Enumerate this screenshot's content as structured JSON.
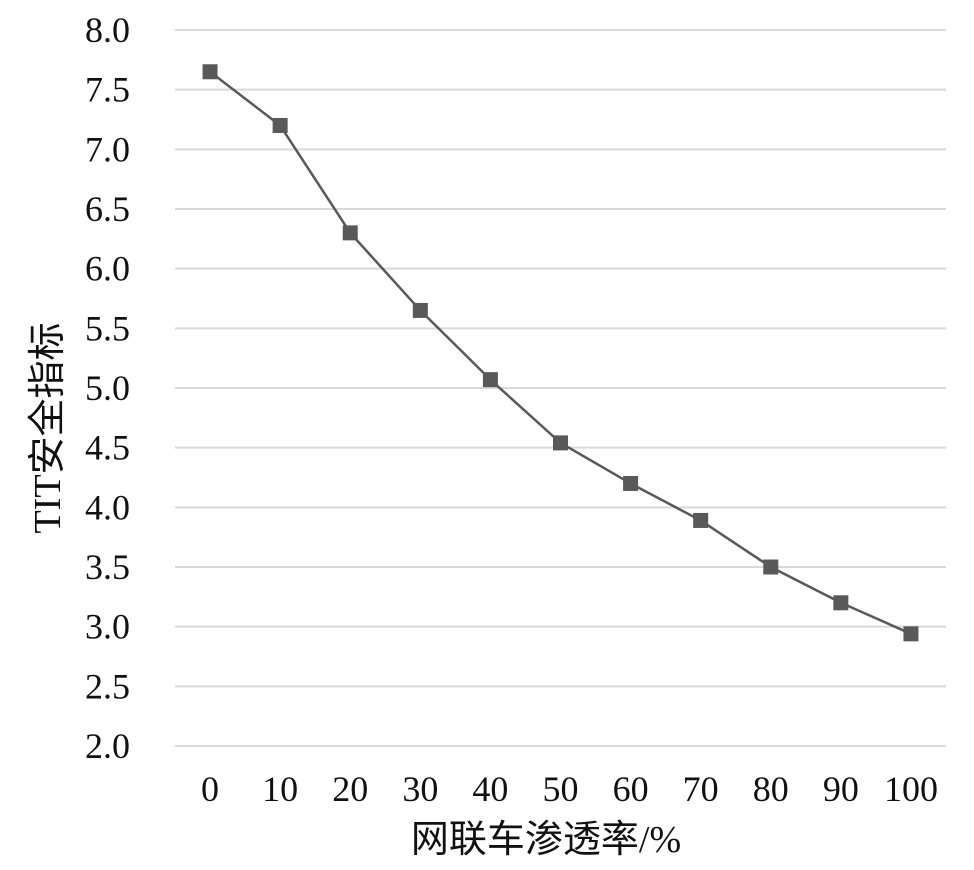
{
  "chart_data": {
    "type": "line",
    "title": "",
    "xlabel": "网联车渗透率/%",
    "ylabel": "TIT安全指标",
    "categories": [
      "0",
      "10",
      "20",
      "30",
      "40",
      "50",
      "60",
      "70",
      "80",
      "90",
      "100"
    ],
    "series": [
      {
        "name": "",
        "values": [
          7.65,
          7.2,
          6.3,
          5.65,
          5.07,
          4.54,
          4.2,
          3.89,
          3.5,
          3.2,
          2.94
        ]
      }
    ],
    "ylim": [
      2.0,
      8.0
    ],
    "yticks": [
      "2.0",
      "2.5",
      "3.0",
      "3.5",
      "4.0",
      "4.5",
      "5.0",
      "5.5",
      "6.0",
      "6.5",
      "7.0",
      "7.5",
      "8.0"
    ],
    "grid": "horizontal",
    "legend": "none",
    "colors": {
      "line": "#595959",
      "marker": "#595959",
      "grid": "#d9d9d9",
      "text": "#111111"
    }
  }
}
